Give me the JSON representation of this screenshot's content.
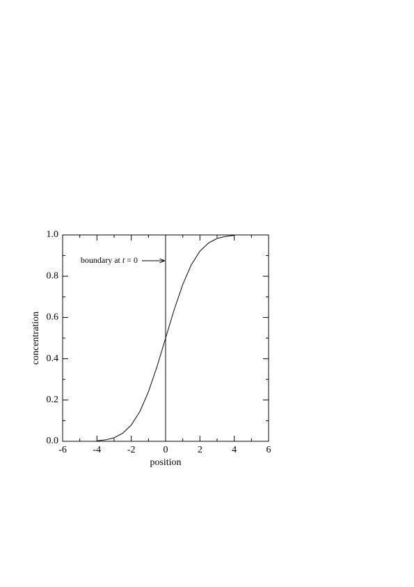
{
  "chart_data": {
    "type": "line",
    "x": [
      -4,
      -3.5,
      -3,
      -2.5,
      -2,
      -1.5,
      -1,
      -0.5,
      0,
      0.5,
      1,
      1.5,
      2,
      2.5,
      3,
      3.5,
      4
    ],
    "values": [
      0.002,
      0.007,
      0.017,
      0.039,
      0.079,
      0.144,
      0.24,
      0.362,
      0.5,
      0.638,
      0.76,
      0.856,
      0.921,
      0.961,
      0.983,
      0.993,
      0.998
    ],
    "color": "#000000",
    "xlabel": "position",
    "ylabel": "concentration",
    "xlim": [
      -6,
      6
    ],
    "ylim": [
      0,
      1
    ],
    "xticks": [
      -6,
      -4,
      -2,
      0,
      2,
      4,
      6
    ],
    "xminorticks": [
      -5,
      -3,
      -1,
      1,
      3,
      5
    ],
    "yticks": [
      {
        "value": 0,
        "label": "0.0"
      },
      {
        "value": 0.2,
        "label": "0.2"
      },
      {
        "value": 0.4,
        "label": "0.4"
      },
      {
        "value": 0.6,
        "label": "0.6"
      },
      {
        "value": 0.8,
        "label": "0.8"
      },
      {
        "value": 1,
        "label": "1.0"
      }
    ],
    "yminorticks": [
      0.1,
      0.3,
      0.5,
      0.7,
      0.9
    ],
    "vline": 0,
    "annotation": {
      "parts": [
        "boundary at",
        "t",
        "= 0"
      ],
      "x": 0,
      "y": 0.875
    }
  }
}
